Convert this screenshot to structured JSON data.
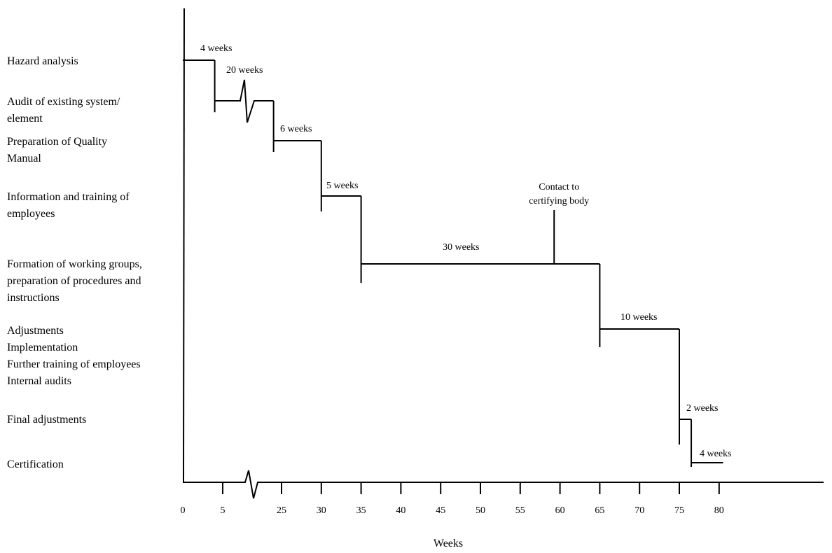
{
  "chart_data": {
    "type": "step-gantt",
    "xlabel": "Weeks",
    "x_ticks": [
      0,
      5,
      25,
      30,
      35,
      40,
      45,
      50,
      55,
      60,
      65,
      70,
      75,
      80
    ],
    "axis_break": "between 5 and 25",
    "line_color": "#000000",
    "tasks": [
      {
        "label": [
          "Hazard analysis"
        ],
        "start": 0,
        "end": 4,
        "duration_label": "4 weeks"
      },
      {
        "label": [
          "Audit of existing system/",
          "element"
        ],
        "start": 4,
        "end": 24,
        "duration_label": "20 weeks",
        "broken": true
      },
      {
        "label": [
          "Preparation of Quality",
          "Manual"
        ],
        "start": 24,
        "end": 30,
        "duration_label": "6 weeks"
      },
      {
        "label": [
          "Information and training of",
          "employees"
        ],
        "start": 30,
        "end": 35,
        "duration_label": "5 weeks"
      },
      {
        "label": [
          "Formation of working groups,",
          "preparation of procedures and",
          "instructions"
        ],
        "start": 35,
        "end": 65,
        "duration_label": "30 weeks"
      },
      {
        "label": [
          "Adjustments",
          "Implementation",
          "Further training of employees",
          "Internal audits"
        ],
        "start": 65,
        "end": 75,
        "duration_label": "10 weeks"
      },
      {
        "label": [
          "Final adjustments"
        ],
        "start": 75,
        "end": 76.5,
        "duration_label": "2 weeks"
      },
      {
        "label": [
          "Certification"
        ],
        "start": 76.5,
        "end": 80.5,
        "duration_label": "4 weeks"
      }
    ],
    "annotation": {
      "text": [
        "Contact to",
        "certifying body"
      ],
      "week": 59
    }
  }
}
